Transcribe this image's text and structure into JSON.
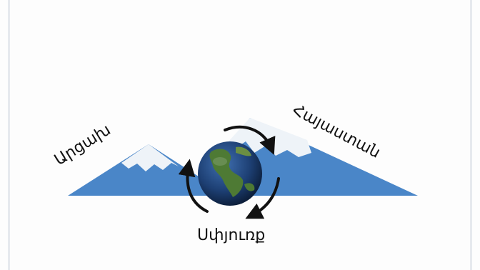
{
  "labels": {
    "left_mountain": "Արցախ",
    "right_mountain": "Հայաստան",
    "bottom": "Սփյուռք"
  },
  "colors": {
    "mountain_blue": "#4a86c8",
    "snow": "#eef3f8",
    "earth_ocean": "#1d3f73",
    "earth_land": "#4e7a34",
    "arrow": "#111111"
  },
  "icons": {
    "globe": "earth-globe-icon",
    "cycle": "circular-arrows-icon"
  }
}
